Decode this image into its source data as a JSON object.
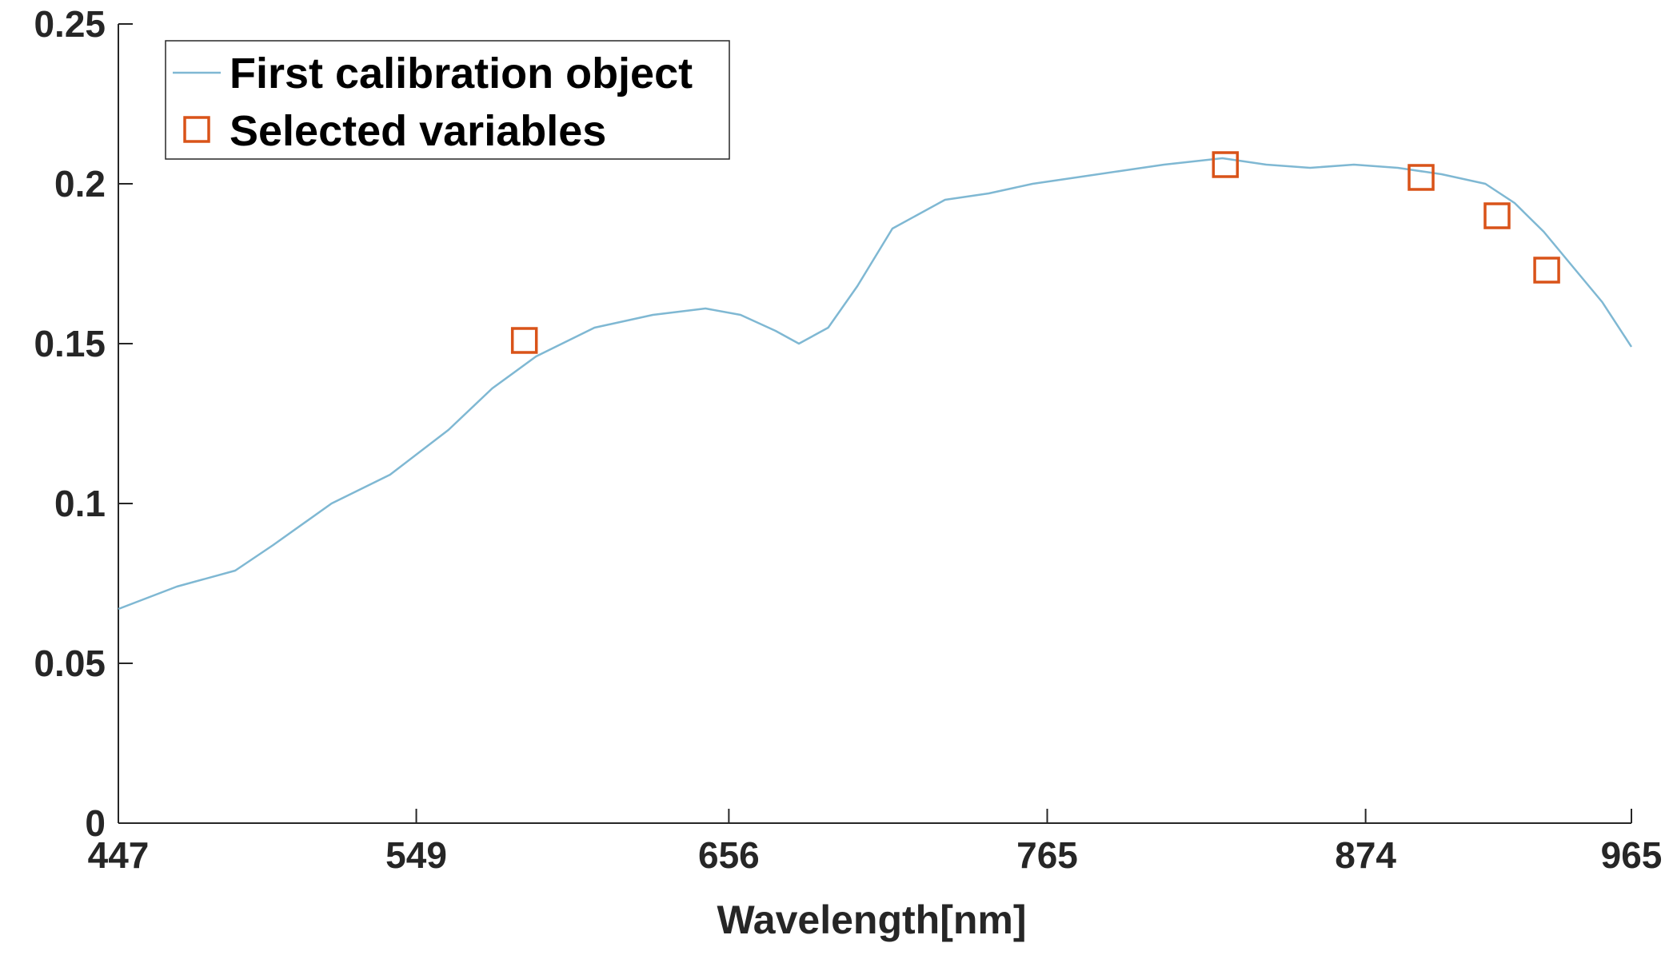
{
  "chart_data": {
    "type": "line",
    "title": "",
    "xlabel": "Wavelength[nm]",
    "ylabel": "",
    "xlim": [
      447,
      965
    ],
    "ylim": [
      0,
      0.25
    ],
    "xticks": [
      "447",
      "549",
      "656",
      "765",
      "874",
      "965"
    ],
    "yticks": [
      "0",
      "0.05",
      "0.1",
      "0.15",
      "0.2",
      "0.25"
    ],
    "grid": false,
    "legend_placement": "top-left",
    "series": [
      {
        "name": "First calibration object",
        "kind": "line",
        "color": "#7fb8d3",
        "x": [
          447,
          467,
          487,
          500,
          520,
          540,
          560,
          575,
          590,
          610,
          630,
          648,
          660,
          672,
          680,
          690,
          700,
          712,
          730,
          745,
          760,
          775,
          790,
          805,
          815,
          825,
          840,
          855,
          870,
          885,
          900,
          915,
          925,
          935,
          945,
          955,
          965
        ],
        "y": [
          0.067,
          0.074,
          0.079,
          0.087,
          0.1,
          0.109,
          0.123,
          0.136,
          0.146,
          0.155,
          0.159,
          0.161,
          0.159,
          0.154,
          0.15,
          0.155,
          0.168,
          0.186,
          0.195,
          0.197,
          0.2,
          0.202,
          0.204,
          0.206,
          0.207,
          0.208,
          0.206,
          0.205,
          0.206,
          0.205,
          0.203,
          0.2,
          0.194,
          0.185,
          0.174,
          0.163,
          0.149
        ]
      },
      {
        "name": "Selected variables",
        "kind": "marker",
        "color": "#d95319",
        "x": [
          586,
          826,
          893,
          919,
          936
        ],
        "y": [
          0.151,
          0.206,
          0.202,
          0.19,
          0.173
        ]
      }
    ]
  }
}
